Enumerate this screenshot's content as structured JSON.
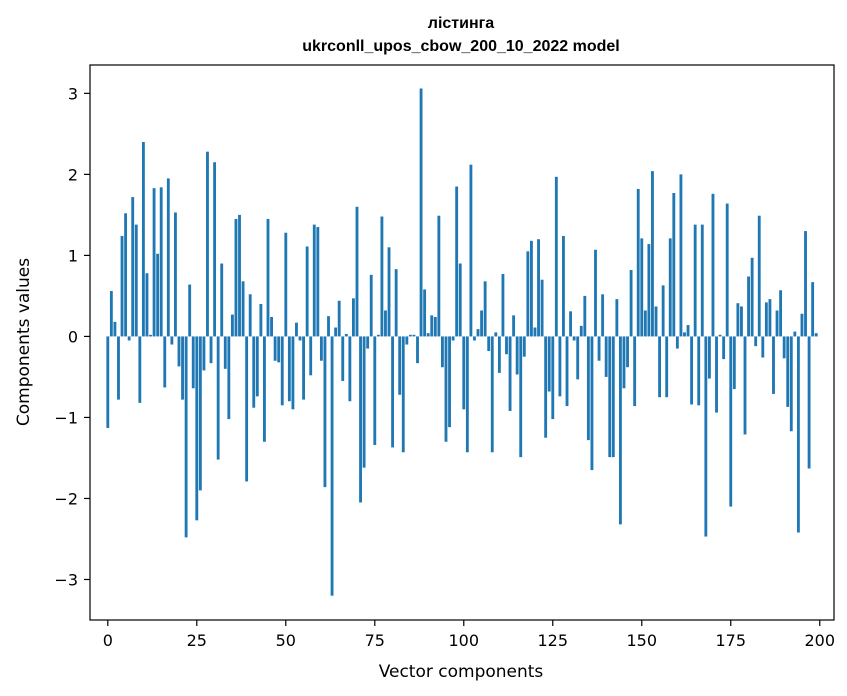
{
  "chart_data": {
    "type": "bar",
    "title": "лістинга",
    "subtitle": "ukrconll_upos_cbow_200_10_2022 model",
    "xlabel": "Vector components",
    "ylabel": "Components values",
    "xlim": [
      -5,
      204
    ],
    "ylim": [
      -3.5,
      3.35
    ],
    "xticks": [
      0,
      25,
      50,
      75,
      100,
      125,
      150,
      175,
      200
    ],
    "xtick_labels": [
      "0",
      "25",
      "50",
      "75",
      "100",
      "125",
      "150",
      "175",
      "200"
    ],
    "yticks": [
      -3,
      -2,
      -1,
      0,
      1,
      2,
      3
    ],
    "ytick_labels": [
      "−3",
      "−2",
      "−1",
      "0",
      "1",
      "2",
      "3"
    ],
    "grid": false,
    "legend": "none",
    "bar_color": "#1f77b4",
    "values": [
      -1.13,
      0.56,
      0.18,
      -0.78,
      1.24,
      1.52,
      -0.05,
      1.72,
      1.38,
      -0.82,
      2.4,
      0.78,
      0.02,
      1.83,
      1.02,
      1.84,
      -0.63,
      1.95,
      -0.1,
      1.53,
      -0.37,
      -0.78,
      -2.48,
      0.64,
      -0.64,
      -2.27,
      -1.9,
      -0.42,
      2.28,
      -0.33,
      2.15,
      -1.52,
      0.9,
      -0.4,
      -1.02,
      0.27,
      1.45,
      1.5,
      0.68,
      -1.79,
      0.52,
      -0.88,
      -0.74,
      0.4,
      -1.3,
      1.45,
      0.24,
      -0.3,
      -0.32,
      -0.85,
      1.28,
      -0.8,
      -0.9,
      0.17,
      -0.05,
      -0.78,
      1.11,
      -0.48,
      1.38,
      1.35,
      -0.3,
      -1.86,
      0.25,
      -3.2,
      0.11,
      0.44,
      -0.55,
      0.03,
      -0.8,
      0.47,
      1.6,
      -2.05,
      -1.62,
      -0.15,
      0.76,
      -1.34,
      0.02,
      1.48,
      0.32,
      1.1,
      -1.37,
      0.83,
      -0.72,
      -1.43,
      -0.1,
      0.02,
      0.02,
      -0.33,
      3.06,
      0.58,
      0.04,
      0.26,
      0.24,
      1.49,
      -0.38,
      -1.3,
      -1.12,
      -0.05,
      1.85,
      0.9,
      -0.9,
      -1.43,
      2.12,
      -0.05,
      0.09,
      0.32,
      0.68,
      -0.18,
      -1.43,
      0.05,
      -0.45,
      0.77,
      -0.22,
      -0.92,
      0.26,
      -0.47,
      -1.49,
      -0.25,
      1.05,
      1.18,
      0.11,
      1.2,
      0.7,
      -1.25,
      -0.68,
      -1.02,
      1.97,
      -0.74,
      1.24,
      -0.86,
      0.31,
      -0.05,
      -0.53,
      0.13,
      0.5,
      -1.28,
      -1.65,
      1.07,
      -0.3,
      0.52,
      -0.5,
      -1.49,
      -1.49,
      0.46,
      -2.32,
      -0.64,
      -0.38,
      0.82,
      -0.86,
      1.82,
      1.21,
      0.32,
      1.14,
      2.04,
      0.37,
      -0.75,
      0.63,
      -0.75,
      1.21,
      1.77,
      -0.15,
      2.0,
      0.05,
      0.14,
      -0.84,
      1.38,
      -0.85,
      1.38,
      -2.47,
      -0.52,
      1.76,
      -0.94,
      0.02,
      -0.28,
      1.64,
      -2.1,
      -0.65,
      0.41,
      0.37,
      -1.21,
      0.74,
      0.97,
      -0.12,
      1.49,
      -0.26,
      0.42,
      0.46,
      -0.71,
      0.32,
      0.57,
      -0.27,
      -0.87,
      -1.17,
      0.06,
      -2.42,
      0.28,
      1.3,
      -1.63,
      0.67,
      0.04
    ]
  }
}
